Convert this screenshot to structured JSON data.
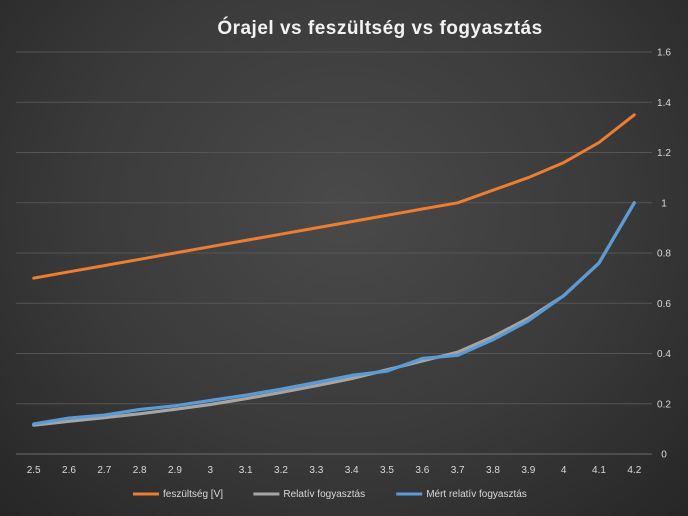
{
  "chart_data": {
    "type": "line",
    "title": "Órajel vs feszültség vs fogyasztás",
    "xlabel": "",
    "ylabel": "",
    "categories": [
      "2.5",
      "2.6",
      "2.7",
      "2.8",
      "2.9",
      "3",
      "3.1",
      "3.2",
      "3.3",
      "3.4",
      "3.5",
      "3.6",
      "3.7",
      "3.8",
      "3.9",
      "4",
      "4.1",
      "4.2"
    ],
    "ylim": [
      0,
      1.6
    ],
    "y_ticks": [
      "0",
      "0.2",
      "0.4",
      "0.6",
      "0.8",
      "1",
      "1.2",
      "1.4",
      "1.6"
    ],
    "y_axis_side": "right",
    "grid": true,
    "legend_position": "bottom",
    "series": [
      {
        "name": "feszültség [V]",
        "color": "#ed7d31",
        "values": [
          0.7,
          0.725,
          0.75,
          0.775,
          0.8,
          0.825,
          0.85,
          0.875,
          0.9,
          0.925,
          0.95,
          0.975,
          1.0,
          1.05,
          1.1,
          1.16,
          1.24,
          1.35
        ]
      },
      {
        "name": "Relatív fogyasztás",
        "color": "#a5a5a5",
        "values": [
          0.115,
          0.13,
          0.145,
          0.16,
          0.178,
          0.197,
          0.22,
          0.245,
          0.272,
          0.3,
          0.335,
          0.37,
          0.405,
          0.467,
          0.54,
          0.63,
          0.76,
          1.0
        ]
      },
      {
        "name": "Mért relatív fogyasztás",
        "color": "#5b9bd5",
        "values": [
          0.12,
          0.143,
          0.155,
          0.177,
          0.192,
          0.213,
          0.234,
          0.258,
          0.285,
          0.313,
          0.33,
          0.38,
          0.393,
          0.455,
          0.53,
          0.63,
          0.76,
          1.0
        ]
      }
    ]
  }
}
